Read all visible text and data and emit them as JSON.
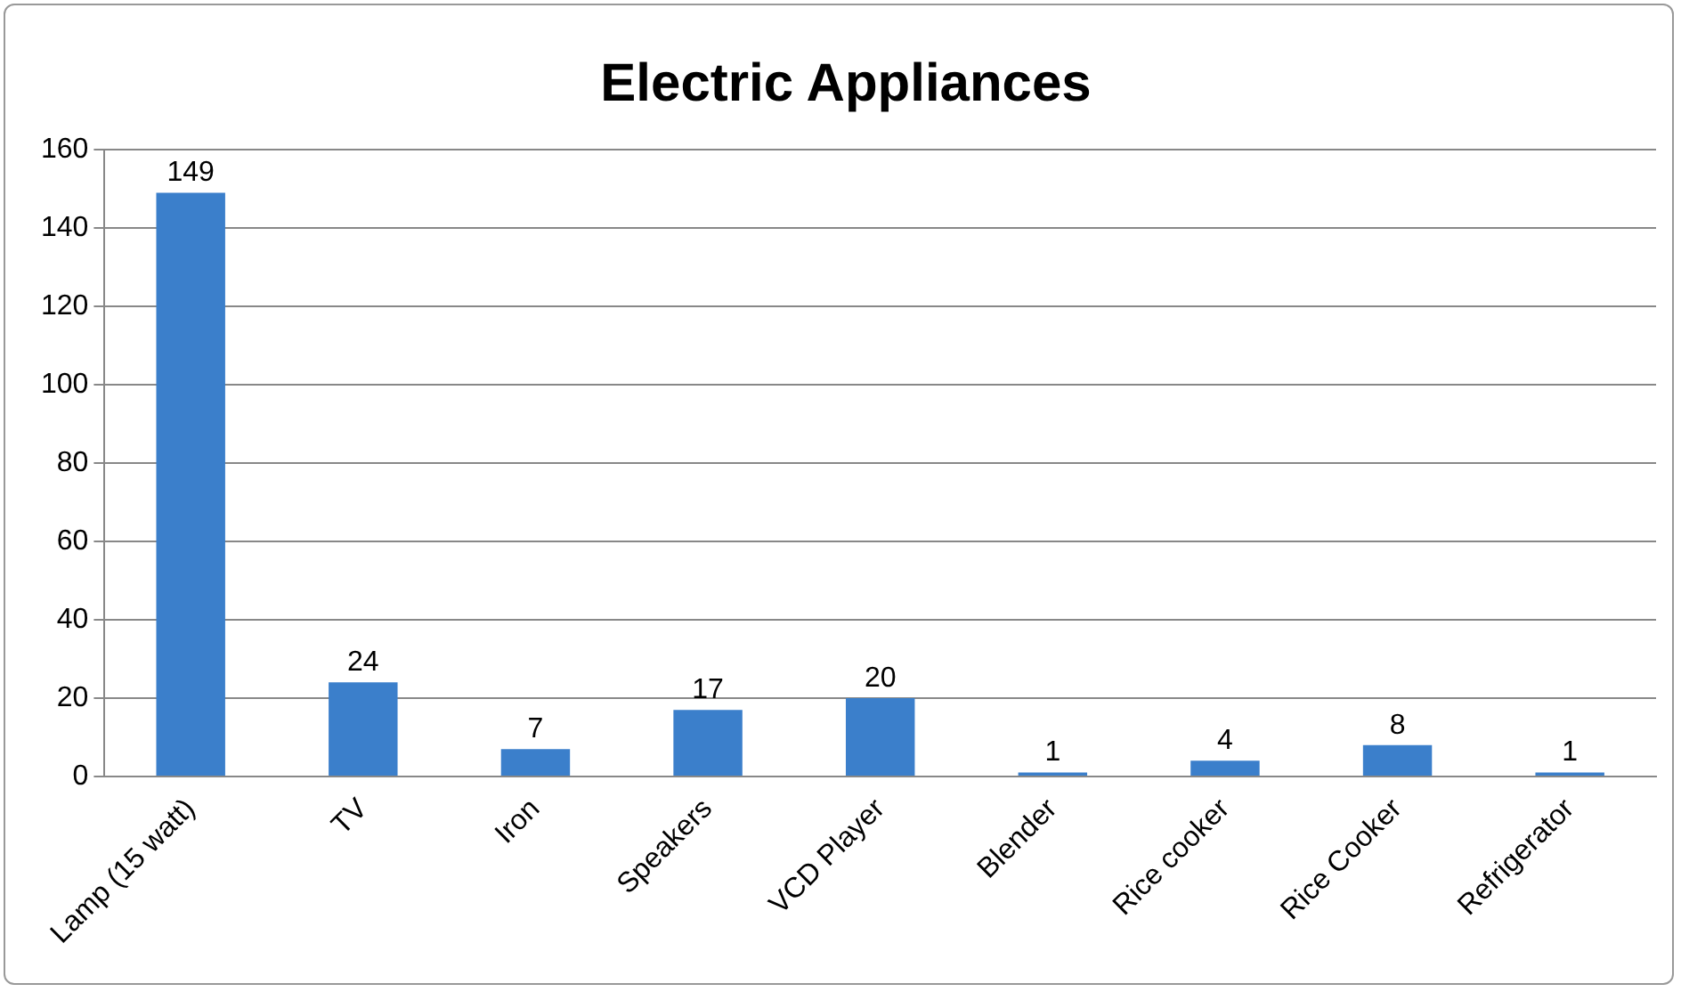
{
  "chart_data": {
    "type": "bar",
    "title": "Electric Appliances",
    "categories": [
      "Lamp (15 watt)",
      "TV",
      "Iron",
      "Speakers",
      "VCD Player",
      "Blender",
      "Rice cooker",
      "Rice Cooker",
      "Refrigerator"
    ],
    "values": [
      149,
      24,
      7,
      17,
      20,
      1,
      4,
      8,
      1
    ],
    "color": "#3b7fcb",
    "ylim": [
      0,
      160
    ],
    "yticks": [
      0,
      20,
      40,
      60,
      80,
      100,
      120,
      140,
      160
    ],
    "grid": "y",
    "data_labels": true,
    "legend": false
  }
}
